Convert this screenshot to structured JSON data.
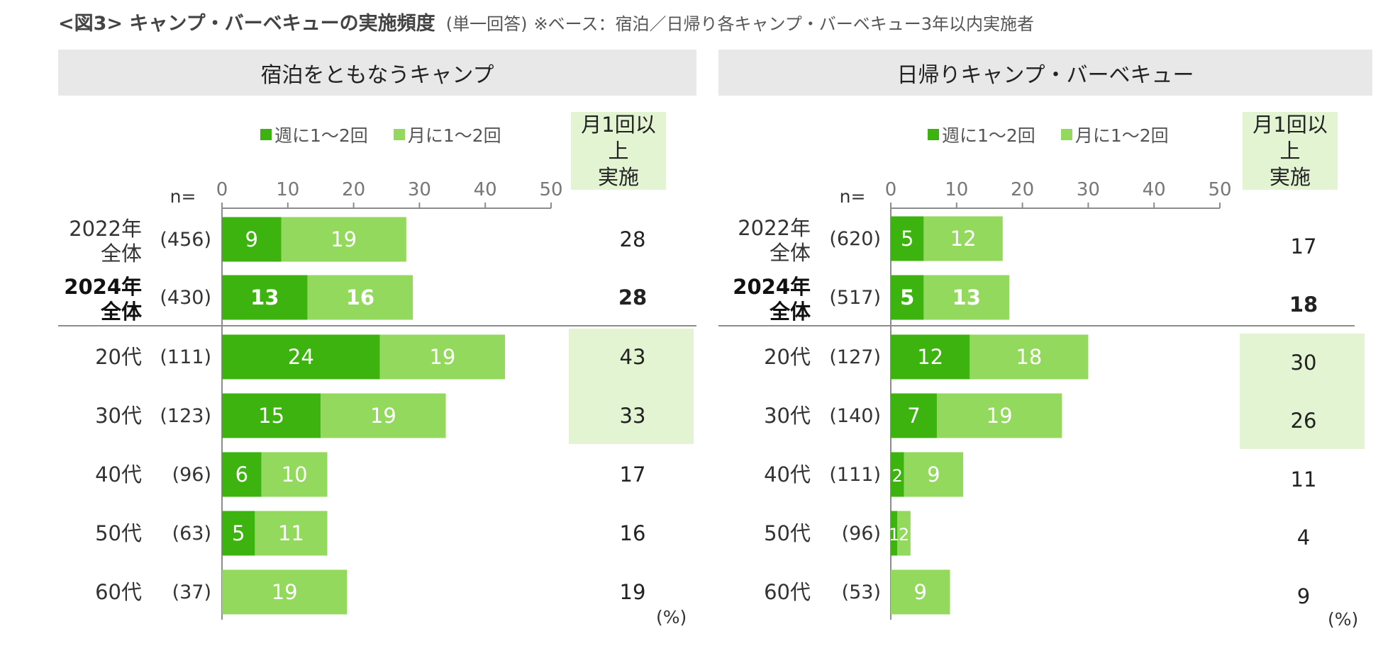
{
  "title": {
    "main": "<図3> キャンプ・バーベキューの実施頻度",
    "sub": "(単一回答)",
    "note": "※ベース：宿泊／日帰り各キャンプ・バーベキュー3年以内実施者"
  },
  "colors": {
    "weekly": "#3db30f",
    "monthly": "#93d95d",
    "highlight": "#e3f4d3",
    "axis": "#8c8c8c"
  },
  "n_label": "n=",
  "unit_label": "(%)",
  "legend": {
    "weekly": "週に1～2回",
    "monthly": "月に1～2回"
  },
  "total_header": {
    "line1": "月1回以上",
    "line2": "実施"
  },
  "chart_data": [
    {
      "type": "bar",
      "stacked": true,
      "orientation": "horizontal",
      "title": "宿泊をともなうキャンプ",
      "xlim": [
        0,
        50
      ],
      "ticks": [
        "0",
        "10",
        "20",
        "30",
        "40",
        "50"
      ],
      "series": [
        {
          "name": "週に1～2回",
          "values": [
            9,
            13,
            24,
            15,
            6,
            5,
            0
          ]
        },
        {
          "name": "月に1～2回",
          "values": [
            19,
            16,
            19,
            19,
            10,
            11,
            19
          ]
        }
      ],
      "categories": [
        {
          "line1": "2022年",
          "line2": "全体",
          "n": "(456)",
          "total": "28",
          "bold": false,
          "highlight": false
        },
        {
          "line1": "2024年",
          "line2": "全体",
          "n": "(430)",
          "total": "28",
          "bold": true,
          "highlight": false
        },
        {
          "line1": "20代",
          "line2": "",
          "n": "(111)",
          "total": "43",
          "bold": false,
          "highlight": true
        },
        {
          "line1": "30代",
          "line2": "",
          "n": "(123)",
          "total": "33",
          "bold": false,
          "highlight": true
        },
        {
          "line1": "40代",
          "line2": "",
          "n": "(96)",
          "total": "17",
          "bold": false,
          "highlight": false
        },
        {
          "line1": "50代",
          "line2": "",
          "n": "(63)",
          "total": "16",
          "bold": false,
          "highlight": false
        },
        {
          "line1": "60代",
          "line2": "",
          "n": "(37)",
          "total": "19",
          "bold": false,
          "highlight": false
        }
      ]
    },
    {
      "type": "bar",
      "stacked": true,
      "orientation": "horizontal",
      "title": "日帰りキャンプ・バーベキュー",
      "xlim": [
        0,
        50
      ],
      "ticks": [
        "0",
        "10",
        "20",
        "30",
        "40",
        "50"
      ],
      "series": [
        {
          "name": "週に1～2回",
          "values": [
            5,
            5,
            12,
            7,
            2,
            1,
            0
          ]
        },
        {
          "name": "月に1～2回",
          "values": [
            12,
            13,
            18,
            19,
            9,
            2,
            9
          ]
        }
      ],
      "categories": [
        {
          "line1": "2022年",
          "line2": "全体",
          "n": "(620)",
          "total": "17",
          "bold": false,
          "highlight": false
        },
        {
          "line1": "2024年",
          "line2": "全体",
          "n": "(517)",
          "total": "18",
          "bold": true,
          "highlight": false
        },
        {
          "line1": "20代",
          "line2": "",
          "n": "(127)",
          "total": "30",
          "bold": false,
          "highlight": true
        },
        {
          "line1": "30代",
          "line2": "",
          "n": "(140)",
          "total": "26",
          "bold": false,
          "highlight": true
        },
        {
          "line1": "40代",
          "line2": "",
          "n": "(111)",
          "total": "11",
          "bold": false,
          "highlight": false
        },
        {
          "line1": "50代",
          "line2": "",
          "n": "(96)",
          "total": "4",
          "bold": false,
          "highlight": false
        },
        {
          "line1": "60代",
          "line2": "",
          "n": "(53)",
          "total": "9",
          "bold": false,
          "highlight": false
        }
      ]
    }
  ]
}
